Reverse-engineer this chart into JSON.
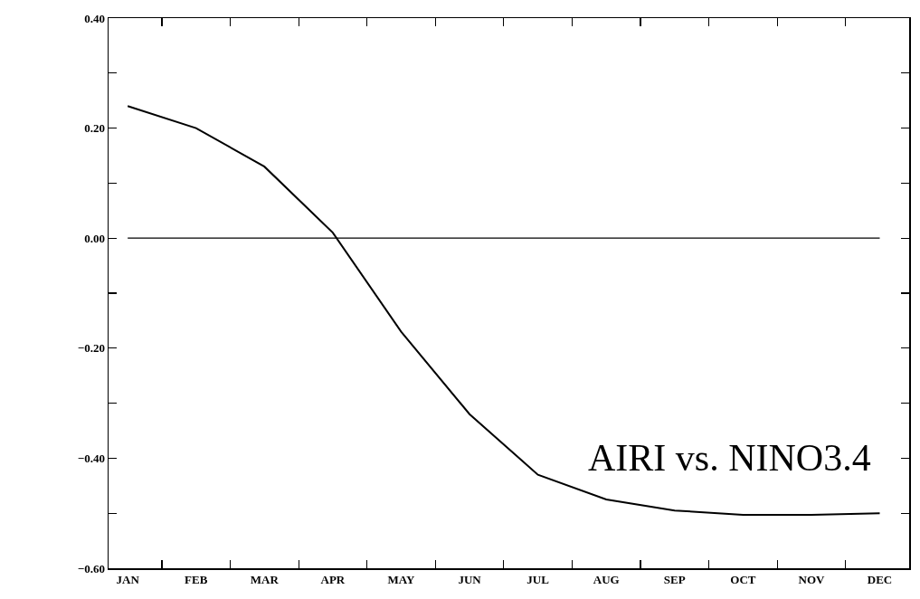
{
  "chart_data": {
    "type": "line",
    "categories": [
      "JAN",
      "FEB",
      "MAR",
      "APR",
      "MAY",
      "JUN",
      "JUL",
      "AUG",
      "SEP",
      "OCT",
      "NOV",
      "DEC"
    ],
    "series": [
      {
        "color": "#000000",
        "values": [
          0.24,
          0.2,
          0.13,
          0.01,
          -0.17,
          -0.32,
          -0.43,
          -0.475,
          -0.495,
          -0.503,
          -0.503,
          -0.5
        ]
      }
    ],
    "ylim": [
      -0.6,
      0.4
    ],
    "yticks": [
      {
        "value": -0.6,
        "label": "−0.60"
      },
      {
        "value": -0.5,
        "label": null
      },
      {
        "value": -0.4,
        "label": "−0.40"
      },
      {
        "value": -0.3,
        "label": null
      },
      {
        "value": -0.2,
        "label": "−0.20"
      },
      {
        "value": -0.1,
        "label": null
      },
      {
        "value": 0,
        "label": "0.00"
      },
      {
        "value": 0.1,
        "label": null
      },
      {
        "value": 0.2,
        "label": "0.20"
      },
      {
        "value": 0.3,
        "label": null
      },
      {
        "value": 0.4,
        "label": "0.40"
      }
    ],
    "ref_lines": [
      {
        "axis": "y",
        "value": 0,
        "color": "#000000"
      }
    ],
    "annotations": [
      "AIRI vs. NINO3.4"
    ],
    "grid": false,
    "marker": "none",
    "line_style": "solid"
  }
}
